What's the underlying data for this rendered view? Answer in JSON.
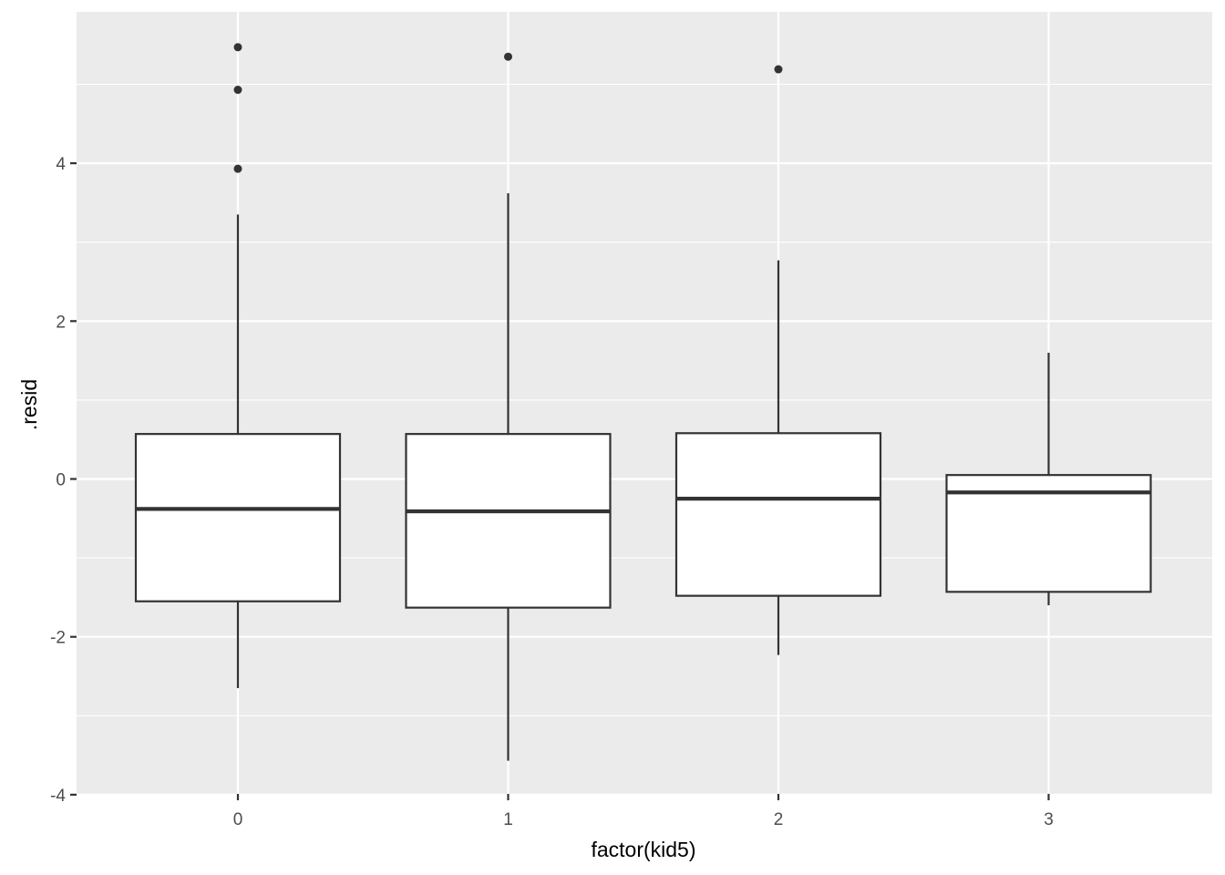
{
  "chart_data": {
    "type": "boxplot",
    "xlabel": "factor(kid5)",
    "ylabel": ".resid",
    "categories": [
      "0",
      "1",
      "2",
      "3"
    ],
    "ylim": [
      -4,
      6.5
    ],
    "y_ticks": [
      -4,
      -2,
      0,
      2,
      4
    ],
    "grid": true,
    "boxes": [
      {
        "category": "0",
        "whisker_low": -2.65,
        "q1": -1.55,
        "median": -0.38,
        "q3": 0.57,
        "whisker_high": 3.35,
        "outliers": [
          5.47,
          4.93,
          3.93
        ]
      },
      {
        "category": "1",
        "whisker_low": -3.57,
        "q1": -1.63,
        "median": -0.41,
        "q3": 0.57,
        "whisker_high": 3.62,
        "outliers": [
          5.35
        ]
      },
      {
        "category": "2",
        "whisker_low": -2.23,
        "q1": -1.48,
        "median": -0.25,
        "q3": 0.58,
        "whisker_high": 2.77,
        "outliers": [
          5.19
        ]
      },
      {
        "category": "3",
        "whisker_low": -1.6,
        "q1": -1.43,
        "median": -0.17,
        "q3": 0.05,
        "whisker_high": 1.6,
        "outliers": []
      }
    ],
    "colors": {
      "panel": "#ebebeb",
      "grid_major": "#ffffff",
      "box_fill": "#ffffff",
      "box_line": "#333333"
    }
  }
}
